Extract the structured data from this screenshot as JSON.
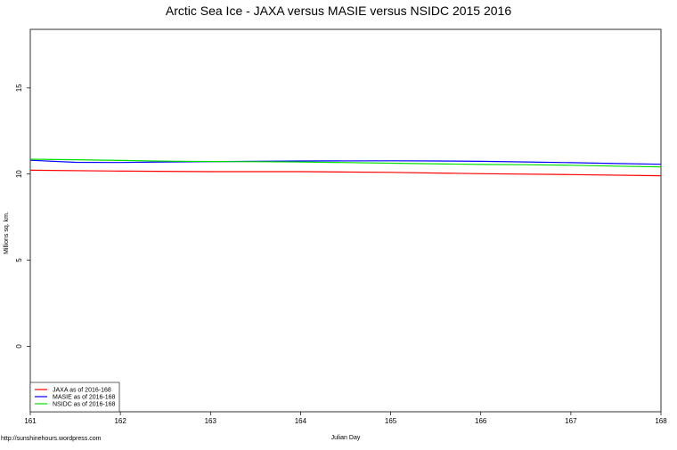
{
  "chart_data": {
    "type": "line",
    "title": "Arctic Sea Ice - JAXA versus MASIE versus NSIDC 2015 2016",
    "xlabel": "Julian Day",
    "ylabel": "Millions sq. km.",
    "xlim": [
      161,
      168
    ],
    "ylim": [
      -3.8,
      18.4
    ],
    "xticks": [
      161,
      162,
      163,
      164,
      165,
      166,
      167,
      168
    ],
    "yticks": [
      0,
      5,
      10,
      15
    ],
    "grid": false,
    "legend_position": "bottom-left",
    "series": [
      {
        "name": "JAXA as of 2016-168",
        "color": "#ff0000",
        "x": [
          161,
          162,
          163,
          164,
          165,
          166,
          167,
          168
        ],
        "y": [
          10.22,
          10.17,
          10.14,
          10.14,
          10.1,
          10.02,
          9.97,
          9.9
        ]
      },
      {
        "name": "MASIE as of 2016-168",
        "color": "#0000ff",
        "x": [
          161,
          161.5,
          162,
          162.5,
          163,
          164,
          165,
          165.5,
          166,
          166.5,
          167,
          167.5,
          168
        ],
        "y": [
          10.8,
          10.68,
          10.67,
          10.7,
          10.72,
          10.76,
          10.77,
          10.76,
          10.74,
          10.7,
          10.66,
          10.61,
          10.57
        ]
      },
      {
        "name": "NSIDC as of 2016-168",
        "color": "#00e000",
        "x": [
          161,
          161.5,
          162,
          162.5,
          163,
          163.5,
          164,
          165,
          166,
          166.5,
          167,
          167.5,
          168
        ],
        "y": [
          10.86,
          10.83,
          10.79,
          10.75,
          10.73,
          10.72,
          10.7,
          10.63,
          10.56,
          10.54,
          10.51,
          10.46,
          10.42
        ]
      }
    ]
  },
  "footer": {
    "source_url": "http://sunshinehours.wordpress.com"
  }
}
